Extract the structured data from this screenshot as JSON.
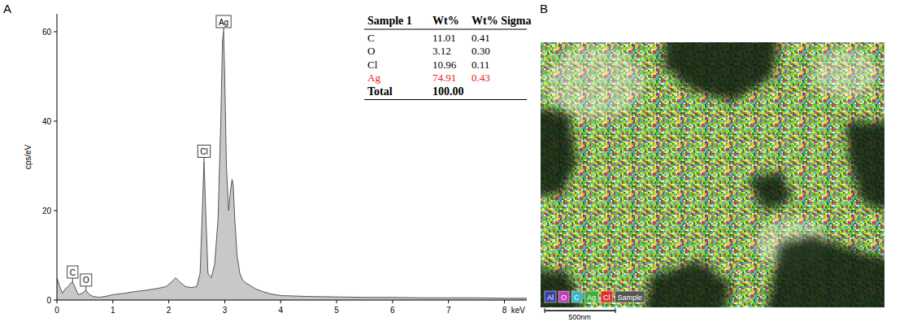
{
  "chart_data": {
    "type": "area",
    "x_label": "keV",
    "y_label": "cps/eV",
    "x": [
      0,
      0.05,
      0.1,
      0.15,
      0.2,
      0.25,
      0.28,
      0.32,
      0.38,
      0.45,
      0.52,
      0.58,
      0.65,
      0.75,
      0.9,
      1.0,
      1.2,
      1.4,
      1.6,
      1.8,
      1.95,
      2.05,
      2.12,
      2.2,
      2.3,
      2.4,
      2.5,
      2.56,
      2.6,
      2.63,
      2.66,
      2.7,
      2.76,
      2.82,
      2.88,
      2.93,
      2.96,
      2.98,
      3.0,
      3.03,
      3.07,
      3.1,
      3.13,
      3.15,
      3.18,
      3.22,
      3.27,
      3.32,
      3.38,
      3.45,
      3.55,
      3.7,
      3.85,
      4.0,
      4.5,
      5,
      5.5,
      6,
      6.5,
      7,
      7.5,
      8,
      8.4
    ],
    "values": [
      5,
      3,
      1.5,
      2.5,
      3,
      3.8,
      4,
      3,
      1.2,
      1.5,
      2.2,
      1.2,
      0.8,
      0.6,
      0.9,
      1.2,
      1.5,
      1.9,
      2.2,
      2.6,
      3,
      4,
      5,
      4,
      3,
      2.8,
      3,
      6,
      20,
      31,
      20,
      6,
      5,
      8,
      18,
      40,
      58,
      60,
      50,
      30,
      20,
      24,
      27,
      26,
      18,
      10,
      6,
      4.5,
      3.8,
      3.3,
      2.5,
      1.8,
      1.3,
      1,
      0.8,
      0.7,
      0.6,
      0.6,
      0.5,
      0.5,
      0.5,
      0.4,
      0.4
    ],
    "color": "#c8c8c8",
    "xlim": [
      0,
      8.4
    ],
    "ylim": [
      0,
      64
    ],
    "xticks": [
      0,
      1,
      2,
      3,
      4,
      5,
      6,
      7,
      8
    ],
    "yticks": [
      0,
      20,
      40,
      60
    ],
    "grid": false,
    "annotations": [
      {
        "text": "C",
        "x": 0.28
      },
      {
        "text": "O",
        "x": 0.52
      },
      {
        "text": "Cl",
        "x": 2.63
      },
      {
        "text": "Ag",
        "x": 2.98
      }
    ]
  },
  "panel_labels": [
    "A",
    "B"
  ],
  "table": {
    "columns": [
      "Sample 1",
      "Wt%",
      "Wt% Sigma"
    ],
    "rows": [
      [
        "C",
        "11.01",
        "0.41"
      ],
      [
        "O",
        "3.12",
        "0.30"
      ],
      [
        "Cl",
        "10.96",
        "0.11"
      ],
      [
        "Ag",
        "74.91",
        "0.43"
      ]
    ],
    "highlight": {
      "row": 3,
      "color": "#e8201c"
    },
    "total": [
      "Total",
      "100.00"
    ]
  },
  "map": {
    "legend": [
      {
        "label": "Al",
        "color": "#3b3fa8"
      },
      {
        "label": "O",
        "color": "#c23cc2"
      },
      {
        "label": "C",
        "color": "#37b7c9"
      },
      {
        "label": "Ag",
        "color": "#3fae3f"
      },
      {
        "label": "Cl",
        "color": "#e0302c"
      }
    ],
    "sample_label": "Sample",
    "scale_bar": "500nm"
  }
}
